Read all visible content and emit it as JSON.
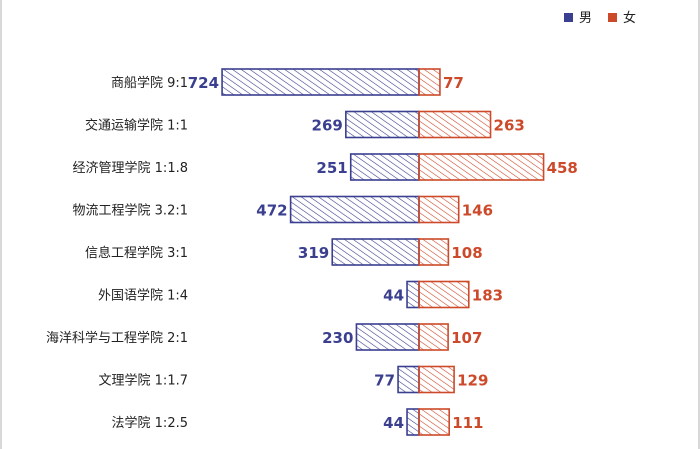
{
  "chart_data": {
    "type": "bar",
    "orientation": "horizontal-diverging",
    "title": "",
    "categories": [
      "商船学院 9:1",
      "交通运输学院 1:1",
      "经济管理学院 1:1.8",
      "物流工程学院 3.2:1",
      "信息工程学院 3:1",
      "外国语学院 1:4",
      "海洋科学与工程学院 2:1",
      "文理学院 1:1.7",
      "法学院 1:2.5"
    ],
    "series": [
      {
        "name": "男",
        "values": [
          724,
          269,
          251,
          472,
          319,
          44,
          230,
          77,
          44
        ]
      },
      {
        "name": "女",
        "values": [
          77,
          263,
          458,
          146,
          108,
          183,
          107,
          129,
          111
        ]
      }
    ],
    "colors": {
      "male": "#3a3f8f",
      "female": "#cc4a2a"
    },
    "legend_position": "top-right",
    "grid": false
  }
}
